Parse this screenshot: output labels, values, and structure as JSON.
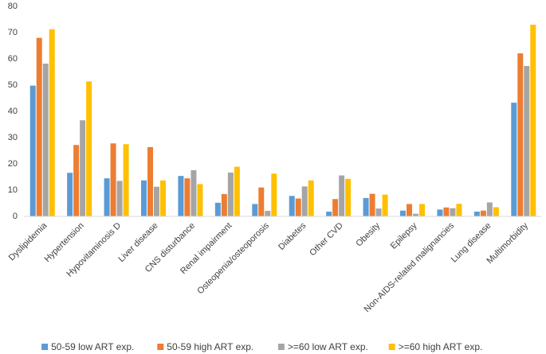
{
  "chart_data": {
    "type": "bar",
    "categories": [
      "Dyslipidemia",
      "Hypertension",
      "Hypovitaminosis D",
      "Liver disease",
      "CNS disturbance",
      "Renal impairment",
      "Osteopenia/osteoporosis",
      "Diabetes",
      "Other CVD",
      "Obesity",
      "Epilepsy",
      "Non-AIDS-related malignancies",
      "Lung disease",
      "Multimorbidity"
    ],
    "series": [
      {
        "name": "50-59 low ART exp.",
        "color": "#5b9bd5",
        "values": [
          49.8,
          16.6,
          14.5,
          13.7,
          15.4,
          5.2,
          4.7,
          7.8,
          1.8,
          7,
          2.2,
          2.6,
          1.8,
          43.3
        ]
      },
      {
        "name": "50-59 high ART exp.",
        "color": "#ed7d31",
        "values": [
          68,
          27.2,
          27.8,
          26.4,
          14.5,
          8.5,
          11,
          6.8,
          6.6,
          8.6,
          4.7,
          3.4,
          2.2,
          62.1
        ]
      },
      {
        "name": ">=60 low ART exp.",
        "color": "#a5a5a5",
        "values": [
          58.2,
          36.6,
          13.5,
          11.3,
          17.6,
          16.7,
          2.1,
          11.4,
          15.6,
          3,
          1,
          3.1,
          5.3,
          57.3
        ]
      },
      {
        "name": ">=60 high ART exp.",
        "color": "#ffc000",
        "values": [
          71.3,
          51.4,
          27.5,
          13.7,
          12.3,
          18.9,
          16.3,
          13.7,
          14.3,
          8.3,
          4.7,
          4.8,
          3.5,
          73
        ]
      }
    ],
    "ylim": [
      0,
      80
    ],
    "yticks": [
      0,
      10,
      20,
      30,
      40,
      50,
      60,
      70,
      80
    ],
    "grid": false,
    "legend": "bottom"
  }
}
